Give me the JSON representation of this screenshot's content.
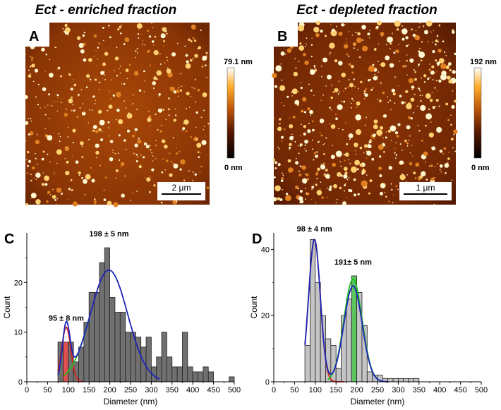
{
  "titles": {
    "left": "Ect - enriched fraction",
    "right": "Ect - depleted fraction"
  },
  "afm": {
    "A": {
      "letter": "A",
      "colorbar_max": "79.1 nm",
      "colorbar_min": "0 nm",
      "scalebar": "2 μm",
      "particle_density": 0.55
    },
    "B": {
      "letter": "B",
      "colorbar_max": "192 nm",
      "colorbar_min": "0 nm",
      "scalebar": "1 μm",
      "particle_density": 0.75
    }
  },
  "colors": {
    "bar_C": "#707070",
    "bar_D": "#c4c4c4",
    "bar_highlight_red": "#e05050",
    "bar_highlight_green": "#5cc45c",
    "fit_total": "#1a24b8",
    "fit_small": "#d42020",
    "fit_large": "#22c022",
    "afm_dark": "#1a0500",
    "afm_mid": "#b04a05",
    "afm_bright": "#fff7d0"
  },
  "chart_data": [
    {
      "panel": "C",
      "type": "bar",
      "xlabel": "Diameter (nm)",
      "ylabel": "Count",
      "xlim": [
        0,
        500
      ],
      "ylim": [
        0,
        30
      ],
      "xticks": [
        0,
        50,
        100,
        150,
        200,
        250,
        300,
        350,
        400,
        450,
        500
      ],
      "yticks": [
        0,
        10,
        20
      ],
      "bin_width": 12.5,
      "bin_starts": [
        75,
        87.5,
        100,
        112.5,
        125,
        137.5,
        150,
        162.5,
        175,
        187.5,
        200,
        212.5,
        225,
        237.5,
        250,
        262.5,
        275,
        287.5,
        300,
        312.5,
        325,
        337.5,
        350,
        362.5,
        375,
        387.5,
        400,
        412.5,
        425,
        437.5,
        487.5
      ],
      "values": [
        8,
        8,
        8,
        4,
        7,
        12,
        18,
        18,
        24,
        27,
        17,
        14,
        14,
        10,
        10,
        9,
        7,
        9,
        3,
        5,
        10,
        5,
        3,
        3,
        10,
        3,
        2,
        2,
        3,
        2,
        1
      ],
      "highlight_red_bins": [
        1
      ],
      "highlight_green_bins": [],
      "fits": [
        {
          "name": "total",
          "mu1": 95,
          "sigma1": 9,
          "amp1": 10.5,
          "mu2": 198,
          "sigma2": 45,
          "amp2": 22.5,
          "range": [
            75,
            320
          ]
        },
        {
          "name": "small",
          "mu": 95,
          "sigma": 11,
          "amp": 11,
          "range": [
            75,
            135
          ]
        },
        {
          "name": "large",
          "mu": 198,
          "sigma": 45,
          "amp": 22.5,
          "range": [
            90,
            150
          ]
        }
      ],
      "annotations": [
        {
          "text": "95 ± 8 nm",
          "x": 95,
          "y": 12
        },
        {
          "text": "198 ± 5 nm",
          "x": 198,
          "y": 29
        }
      ],
      "letter": "C"
    },
    {
      "panel": "D",
      "type": "bar",
      "xlabel": "Diameter (nm)",
      "ylabel": "Count",
      "xlim": [
        0,
        500
      ],
      "ylim": [
        0,
        45
      ],
      "xticks": [
        0,
        50,
        100,
        150,
        200,
        250,
        300,
        350,
        400,
        450,
        500
      ],
      "yticks": [
        0,
        20,
        40
      ],
      "bin_width": 12.5,
      "bin_starts": [
        75,
        87.5,
        100,
        112.5,
        125,
        137.5,
        150,
        162.5,
        175,
        187.5,
        200,
        212.5,
        225,
        237.5,
        250,
        262.5,
        275,
        287.5,
        300,
        312.5,
        325,
        337.5
      ],
      "values": [
        11,
        43,
        30,
        20,
        13,
        11,
        4,
        20,
        25,
        32,
        27,
        17,
        3,
        2,
        2,
        1,
        1,
        1,
        1,
        1,
        1,
        1
      ],
      "highlight_red_bins": [],
      "highlight_green_bins": [
        9
      ],
      "fits": [
        {
          "name": "total",
          "mu1": 98,
          "sigma1": 14,
          "amp1": 43,
          "mu2": 191,
          "sigma2": 22,
          "amp2": 29,
          "range": [
            75,
            275
          ]
        },
        {
          "name": "small",
          "mu": 98,
          "sigma": 14,
          "amp": 43,
          "range": [
            75,
            170
          ]
        },
        {
          "name": "large",
          "mu": 191,
          "sigma": 22,
          "amp": 31,
          "range": [
            130,
            250
          ]
        }
      ],
      "annotations": [
        {
          "text": "98 ± 4 nm",
          "x": 98,
          "y": 45
        },
        {
          "text": "191± 5 nm",
          "x": 191,
          "y": 35
        }
      ],
      "letter": "D"
    }
  ]
}
